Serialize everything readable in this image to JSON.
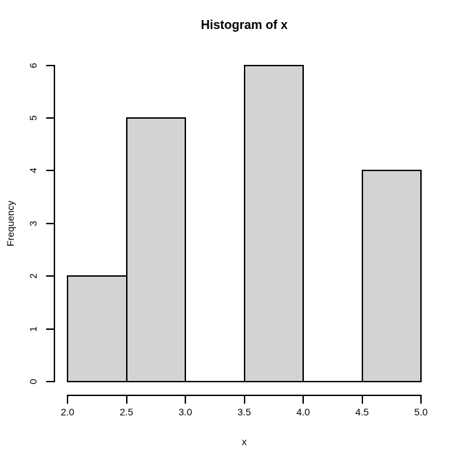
{
  "figure": {
    "background": "#FFFFFF"
  },
  "chart_data": {
    "type": "bar",
    "subtype": "histogram",
    "title": "Histogram of x",
    "xlabel": "x",
    "ylabel": "Frequency",
    "breaks": [
      2.0,
      2.5,
      3.0,
      3.5,
      4.0,
      4.5,
      5.0
    ],
    "counts": [
      2,
      5,
      0,
      6,
      0,
      4
    ],
    "xlim": [
      2.0,
      5.0
    ],
    "ylim": [
      0,
      6
    ],
    "x_ticks": [
      {
        "value": 2.0,
        "label": "2.0"
      },
      {
        "value": 2.5,
        "label": "2.5"
      },
      {
        "value": 3.0,
        "label": "3.0"
      },
      {
        "value": 3.5,
        "label": "3.5"
      },
      {
        "value": 4.0,
        "label": "4.0"
      },
      {
        "value": 4.5,
        "label": "4.5"
      },
      {
        "value": 5.0,
        "label": "5.0"
      }
    ],
    "y_ticks": [
      {
        "value": 0,
        "label": "0"
      },
      {
        "value": 1,
        "label": "1"
      },
      {
        "value": 2,
        "label": "2"
      },
      {
        "value": 3,
        "label": "3"
      },
      {
        "value": 4,
        "label": "4"
      },
      {
        "value": 5,
        "label": "5"
      },
      {
        "value": 6,
        "label": "6"
      }
    ],
    "grid": false,
    "legend_position": "none",
    "colors": {
      "bar_fill": "#D3D3D3",
      "bar_border": "#000000",
      "axis": "#000000",
      "text": "#000000"
    }
  }
}
